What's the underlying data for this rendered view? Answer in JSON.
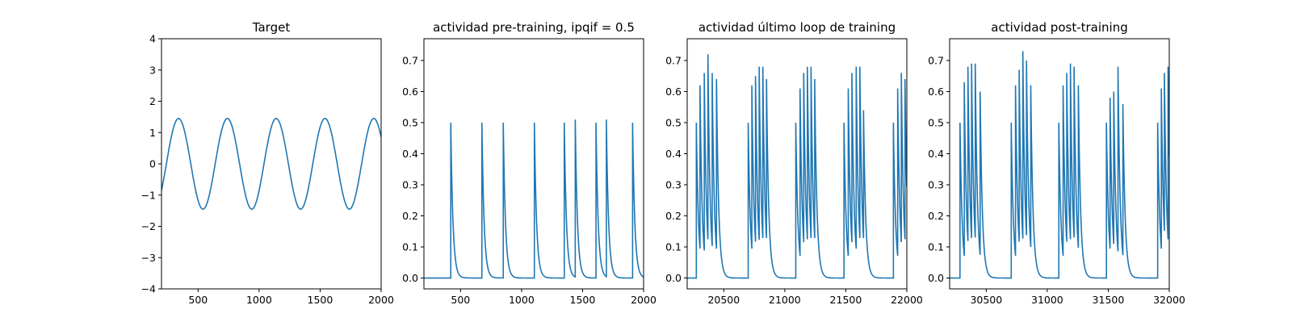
{
  "accent": "#1f77b4",
  "chart_data": [
    {
      "type": "line",
      "title": "Target",
      "xlim": [
        200,
        2000
      ],
      "ylim": [
        -4,
        4
      ],
      "xticks": [
        500,
        1000,
        1500,
        2000
      ],
      "yticks": [
        -4,
        -3,
        -2,
        -1,
        0,
        1,
        2,
        3,
        4
      ],
      "xticklabels": [
        "500",
        "1000",
        "1500",
        "2000"
      ],
      "yticklabels": [
        "−4",
        "−3",
        "−2",
        "−1",
        "0",
        "1",
        "2",
        "3",
        "4"
      ],
      "signal": {
        "kind": "sine",
        "amplitude": 1.45,
        "period": 400,
        "peak_at": 340,
        "x_start": 200,
        "x_end": 2000
      }
    },
    {
      "type": "line",
      "title": "actividad pre-training, ipqif = 0.5",
      "xlim": [
        200,
        2000
      ],
      "ylim": [
        -0.035,
        0.77
      ],
      "xticks": [
        500,
        1000,
        1500,
        2000
      ],
      "yticks": [
        0.0,
        0.1,
        0.2,
        0.3,
        0.4,
        0.5,
        0.6,
        0.7
      ],
      "xticklabels": [
        "500",
        "1000",
        "1500",
        "2000"
      ],
      "yticklabels": [
        "0.0",
        "0.1",
        "0.2",
        "0.3",
        "0.4",
        "0.5",
        "0.6",
        "0.7"
      ],
      "signal": {
        "kind": "spikes",
        "x_start": 200,
        "x_end": 2000,
        "decay": 18,
        "spikes": [
          [
            420,
            0.5
          ],
          [
            675,
            0.5
          ],
          [
            850,
            0.5
          ],
          [
            1105,
            0.5
          ],
          [
            1350,
            0.5
          ],
          [
            1440,
            0.51
          ],
          [
            1610,
            0.5
          ],
          [
            1695,
            0.51
          ],
          [
            1910,
            0.5
          ]
        ]
      }
    },
    {
      "type": "line",
      "title": "actividad último loop de training",
      "xlim": [
        20200,
        22000
      ],
      "ylim": [
        -0.035,
        0.77
      ],
      "xticks": [
        20500,
        21000,
        21500,
        22000
      ],
      "yticks": [
        0.0,
        0.1,
        0.2,
        0.3,
        0.4,
        0.5,
        0.6,
        0.7
      ],
      "xticklabels": [
        "20500",
        "21000",
        "21500",
        "22000"
      ],
      "yticklabels": [
        "0.0",
        "0.1",
        "0.2",
        "0.3",
        "0.4",
        "0.5",
        "0.6",
        "0.7"
      ],
      "signal": {
        "kind": "spikes",
        "x_start": 20200,
        "x_end": 22000,
        "decay": 18,
        "spikes": [
          [
            20275,
            0.5
          ],
          [
            20305,
            0.62
          ],
          [
            20340,
            0.66
          ],
          [
            20370,
            0.72
          ],
          [
            20405,
            0.66
          ],
          [
            20440,
            0.64
          ],
          [
            20700,
            0.5
          ],
          [
            20730,
            0.62
          ],
          [
            20760,
            0.65
          ],
          [
            20790,
            0.68
          ],
          [
            20820,
            0.68
          ],
          [
            20850,
            0.64
          ],
          [
            21090,
            0.5
          ],
          [
            21125,
            0.61
          ],
          [
            21155,
            0.66
          ],
          [
            21185,
            0.68
          ],
          [
            21215,
            0.68
          ],
          [
            21245,
            0.64
          ],
          [
            21485,
            0.5
          ],
          [
            21520,
            0.61
          ],
          [
            21550,
            0.66
          ],
          [
            21585,
            0.68
          ],
          [
            21615,
            0.68
          ],
          [
            21645,
            0.54
          ],
          [
            21890,
            0.5
          ],
          [
            21925,
            0.61
          ],
          [
            21955,
            0.66
          ],
          [
            21985,
            0.64
          ]
        ]
      }
    },
    {
      "type": "line",
      "title": "actividad post-training",
      "xlim": [
        30200,
        32000
      ],
      "ylim": [
        -0.035,
        0.77
      ],
      "xticks": [
        30500,
        31000,
        31500,
        32000
      ],
      "yticks": [
        0.0,
        0.1,
        0.2,
        0.3,
        0.4,
        0.5,
        0.6,
        0.7
      ],
      "xticklabels": [
        "30500",
        "31000",
        "31500",
        "32000"
      ],
      "yticklabels": [
        "0.0",
        "0.1",
        "0.2",
        "0.3",
        "0.4",
        "0.5",
        "0.6",
        "0.7"
      ],
      "signal": {
        "kind": "spikes",
        "x_start": 30200,
        "x_end": 32000,
        "decay": 18,
        "spikes": [
          [
            30285,
            0.5
          ],
          [
            30320,
            0.63
          ],
          [
            30350,
            0.68
          ],
          [
            30380,
            0.69
          ],
          [
            30410,
            0.69
          ],
          [
            30450,
            0.6
          ],
          [
            30705,
            0.5
          ],
          [
            30740,
            0.62
          ],
          [
            30770,
            0.67
          ],
          [
            30800,
            0.73
          ],
          [
            30830,
            0.7
          ],
          [
            30865,
            0.62
          ],
          [
            31095,
            0.5
          ],
          [
            31130,
            0.62
          ],
          [
            31160,
            0.66
          ],
          [
            31190,
            0.69
          ],
          [
            31220,
            0.68
          ],
          [
            31255,
            0.62
          ],
          [
            31485,
            0.5
          ],
          [
            31515,
            0.58
          ],
          [
            31545,
            0.6
          ],
          [
            31580,
            0.68
          ],
          [
            31620,
            0.56
          ],
          [
            31905,
            0.5
          ],
          [
            31935,
            0.61
          ],
          [
            31960,
            0.66
          ],
          [
            31990,
            0.68
          ]
        ]
      }
    }
  ]
}
